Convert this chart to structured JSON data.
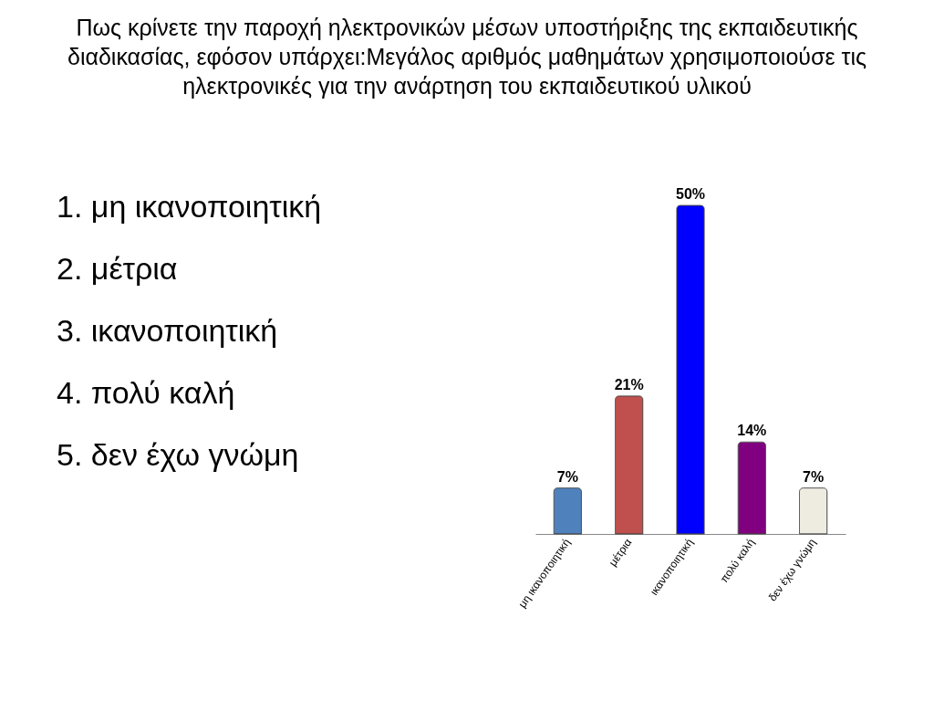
{
  "chart_data": {
    "type": "bar",
    "title": "Πως κρίνετε την παροχή ηλεκτρονικών μέσων υποστήριξης της εκπαιδευτικής διαδικασίας, εφόσον υπάρχει:Μεγάλος αριθμός μαθημάτων χρησιμοποιούσε τις ηλεκτρονικές για την ανάρτηση του εκπαιδευτικού υλικού",
    "categories": [
      "μη ικανοποιητική",
      "μέτρια",
      "ικανοποιητική",
      "πολύ καλή",
      "δεν έχω γνώμη"
    ],
    "values": [
      7,
      21,
      50,
      14,
      7
    ],
    "colors": [
      "#4f81bd",
      "#c0504d",
      "#0000ff",
      "#800080",
      "#eeece1"
    ],
    "value_labels": [
      "7%",
      "21%",
      "50%",
      "14%",
      "7%"
    ],
    "annotations": [
      "1.  μη ικανοποιητική",
      "2.  μέτρια",
      "3.  ικανοποιητική",
      "4.  πολύ καλή",
      "5.  δεν έχω γνώμη"
    ]
  }
}
